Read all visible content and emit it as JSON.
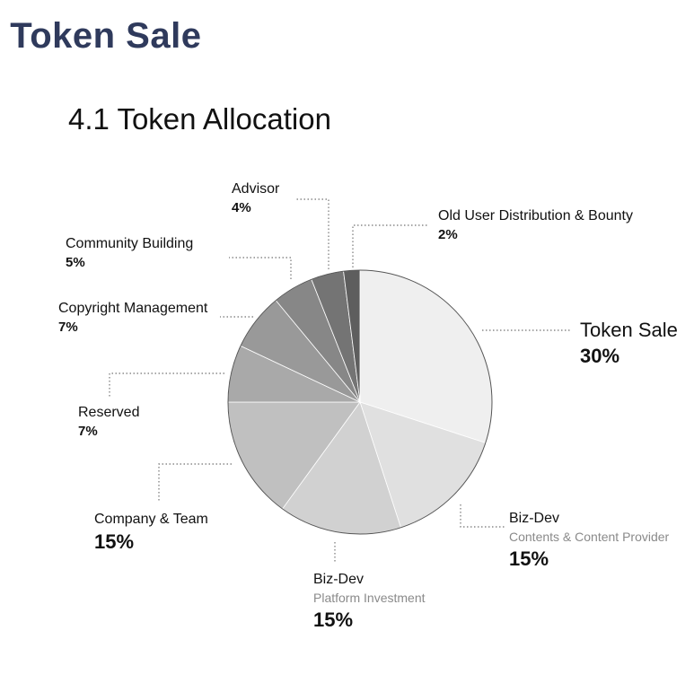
{
  "header": {
    "section_title": ". Token Sale",
    "subtitle": "4.1 Token Allocation"
  },
  "chart_data": {
    "type": "pie",
    "title": "4.1 Token Allocation",
    "slices": [
      {
        "name": "Token Sale",
        "description": "",
        "value": 30,
        "label": "30%",
        "color": "#efefef"
      },
      {
        "name": "Biz-Dev",
        "description": "Contents & Content Provider",
        "value": 15,
        "label": "15%",
        "color": "#e0e0e0"
      },
      {
        "name": "Biz-Dev",
        "description": "Platform Investment",
        "value": 15,
        "label": "15%",
        "color": "#d1d1d1"
      },
      {
        "name": "Company & Team",
        "description": "",
        "value": 15,
        "label": "15%",
        "color": "#c0c0c0"
      },
      {
        "name": "Reserved",
        "description": "",
        "value": 7,
        "label": "7%",
        "color": "#a9a9a9"
      },
      {
        "name": "Copyright Management",
        "description": "",
        "value": 7,
        "label": "7%",
        "color": "#999999"
      },
      {
        "name": "Community Building",
        "description": "",
        "value": 5,
        "label": "5%",
        "color": "#878787"
      },
      {
        "name": "Advisor",
        "description": "",
        "value": 4,
        "label": "4%",
        "color": "#747474"
      },
      {
        "name": "Old User Distribution & Bounty",
        "description": "",
        "value": 2,
        "label": "2%",
        "color": "#5e5e5e"
      }
    ],
    "start": "12 o'clock",
    "direction": "clockwise",
    "legend": "callout labels"
  }
}
